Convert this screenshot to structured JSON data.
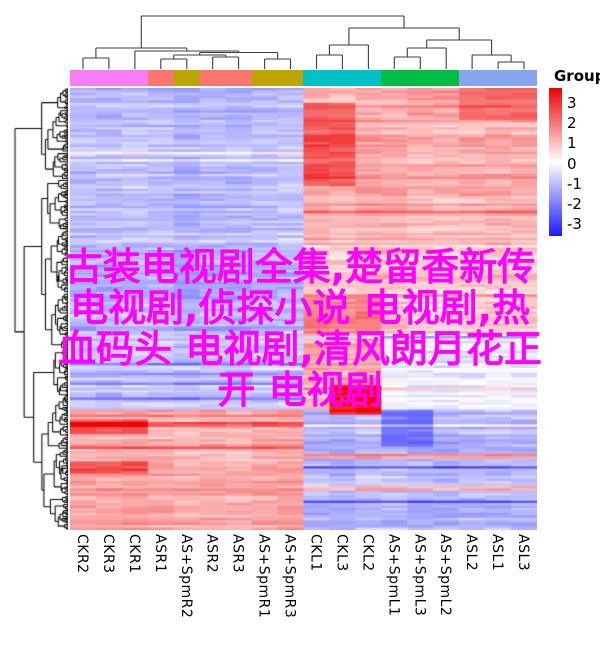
{
  "title_overlay": {
    "color": "#FF00FF",
    "lines": [
      "古装电视剧全集,楚留香新传",
      "电视剧,侦探小说 电视剧,热",
      "血码头 电视剧,清风朗月花正",
      "开 电视剧"
    ]
  },
  "legend": {
    "title": "Group",
    "ticks": [
      "3",
      "2",
      "1",
      "0",
      "-1",
      "-2",
      "-3"
    ],
    "gradient_top": "#EE0000",
    "gradient_mid": "#FFFFFF",
    "gradient_bottom": "#1A1AFF"
  },
  "chart_data": {
    "type": "heatmap",
    "title": "",
    "xlabel": "",
    "ylabel": "",
    "value_range": [
      -3,
      3
    ],
    "columns": [
      "CKR2",
      "CKR3",
      "CKR1",
      "ASR1",
      "AS+SpmR2",
      "ASR2",
      "ASR3",
      "AS+SpmR1",
      "AS+SpmR3",
      "CKL1",
      "CKL3",
      "CKL2",
      "AS+SpmL1",
      "AS+SpmL3",
      "AS+SpmL2",
      "ASL2",
      "ASL1",
      "ASL3"
    ],
    "column_annotation": {
      "name": "Group",
      "groups": [
        {
          "label": "CKR",
          "color": "#F77CF7",
          "columns": [
            0,
            1,
            2
          ]
        },
        {
          "label": "ASR",
          "color": "#F8766D",
          "columns": [
            3,
            5,
            6
          ]
        },
        {
          "label": "AS+SpmR",
          "color": "#BDA500",
          "columns": [
            4,
            7,
            8
          ]
        },
        {
          "label": "CKL",
          "color": "#00C1C7",
          "columns": [
            9,
            10,
            11
          ]
        },
        {
          "label": "AS+SpmL",
          "color": "#00BC44",
          "columns": [
            12,
            13,
            14
          ]
        },
        {
          "label": "ASL",
          "color": "#86A5EF",
          "columns": [
            15,
            16,
            17
          ]
        }
      ]
    },
    "n_rows": 180,
    "row_bands": [
      {
        "rows": [
          0,
          64
        ],
        "left_mean": -0.85,
        "right_mean": 0.9
      },
      {
        "rows": [
          64,
          100
        ],
        "left_mean": -1.05,
        "right_mean": 0.65
      },
      {
        "rows": [
          100,
          131
        ],
        "left_mean": -0.75,
        "right_mean": 0.7
      },
      {
        "rows": [
          131,
          180
        ],
        "left_mean": 0.95,
        "right_mean": -0.95
      }
    ],
    "patches": [
      {
        "rows": [
          6,
          40
        ],
        "cols": [
          9,
          10
        ],
        "value": 2.0
      },
      {
        "rows": [
          0,
          13
        ],
        "cols": [
          15,
          17
        ],
        "value": 1.8
      },
      {
        "rows": [
          0,
          12
        ],
        "cols": [
          13,
          14
        ],
        "value": 1.3
      },
      {
        "rows": [
          85,
          100
        ],
        "cols": [
          9,
          11
        ],
        "value": 1.5
      },
      {
        "rows": [
          100,
          131
        ],
        "cols": [
          12,
          17
        ],
        "value": -0.25
      },
      {
        "rows": [
          104,
          121
        ],
        "cols": [
          9,
          11
        ],
        "value": 1.0
      },
      {
        "rows": [
          121,
          133
        ],
        "cols": [
          10,
          11
        ],
        "value": 2.7
      },
      {
        "rows": [
          131,
          146
        ],
        "cols": [
          12,
          13
        ],
        "value": -1.9
      },
      {
        "rows": [
          135,
          141
        ],
        "cols": [
          0,
          2
        ],
        "value": 2.1
      },
      {
        "rows": [
          152,
          157
        ],
        "cols": [
          0,
          2
        ],
        "value": 1.9
      },
      {
        "rows": [
          149,
          151
        ],
        "cols": [
          9,
          17
        ],
        "value": 1.1
      },
      {
        "rows": [
          162,
          164
        ],
        "cols": [
          9,
          17
        ],
        "value": 0.9
      }
    ],
    "column_tree": {
      "y": 16,
      "c": [
        {
          "y": 48,
          "c": [
            {
              "y": 58,
              "c": [
                {
                  "leaf": 0
                },
                {
                  "leaf": 1
                }
              ]
            },
            {
              "y": 51,
              "c": [
                {
                  "leaf": 2
                },
                {
                  "y": 52.5,
                  "c": [
                    {
                      "y": 55,
                      "c": [
                        {
                          "y": 59,
                          "c": [
                            {
                              "leaf": 3
                            },
                            {
                              "leaf": 4
                            }
                          ]
                        },
                        {
                          "y": 57,
                          "c": [
                            {
                              "leaf": 5
                            },
                            {
                              "leaf": 6
                            }
                          ]
                        }
                      ]
                    },
                    {
                      "y": 59,
                      "c": [
                        {
                          "leaf": 7
                        },
                        {
                          "leaf": 8
                        }
                      ]
                    }
                  ]
                }
              ]
            }
          ]
        },
        {
          "y": 28,
          "c": [
            {
              "y": 45,
              "c": [
                {
                  "y": 55,
                  "c": [
                    {
                      "leaf": 9
                    },
                    {
                      "leaf": 10
                    }
                  ]
                },
                {
                  "leaf": 11
                }
              ]
            },
            {
              "y": 40,
              "c": [
                {
                  "y": 48,
                  "c": [
                    {
                      "y": 57,
                      "c": [
                        {
                          "leaf": 12
                        },
                        {
                          "leaf": 13
                        }
                      ]
                    },
                    {
                      "leaf": 14
                    }
                  ]
                },
                {
                  "y": 55,
                  "c": [
                    {
                      "leaf": 15
                    },
                    {
                      "y": 62,
                      "c": [
                        {
                          "leaf": 16
                        },
                        {
                          "leaf": 17
                        }
                      ]
                    }
                  ]
                }
              ]
            }
          ]
        }
      ]
    },
    "row_dendrogram": {
      "approx_leaves": 330,
      "labels_shown": false
    }
  }
}
